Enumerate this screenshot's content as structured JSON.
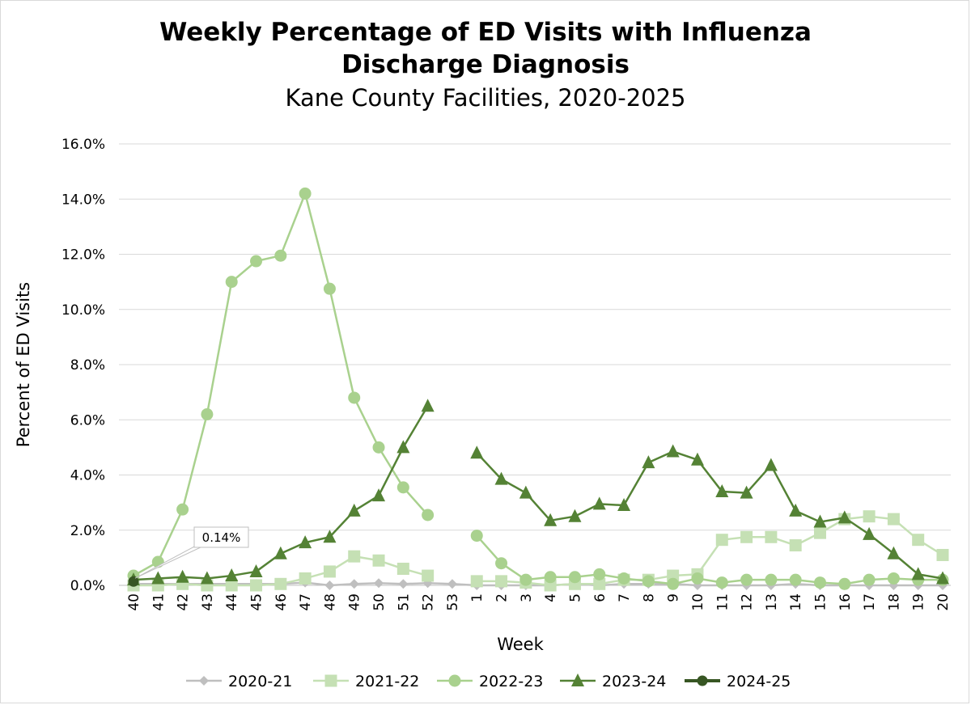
{
  "chart_data": {
    "type": "line",
    "title_line1": "Weekly Percentage of ED Visits with Influenza",
    "title_line2": "Discharge Diagnosis",
    "subtitle": "Kane County Facilities, 2020-2025",
    "xlabel": "Week",
    "ylabel": "Percent of ED Visits",
    "ylim": [
      0,
      16
    ],
    "yticks": [
      "0.0%",
      "2.0%",
      "4.0%",
      "6.0%",
      "8.0%",
      "10.0%",
      "12.0%",
      "14.0%",
      "16.0%"
    ],
    "categories": [
      "40",
      "41",
      "42",
      "43",
      "44",
      "45",
      "46",
      "47",
      "48",
      "49",
      "50",
      "51",
      "52",
      "53",
      "1",
      "2",
      "3",
      "4",
      "5",
      "6",
      "7",
      "8",
      "9",
      "10",
      "11",
      "12",
      "13",
      "14",
      "15",
      "16",
      "17",
      "18",
      "19",
      "20"
    ],
    "grid": "horizontal",
    "legend_position": "bottom",
    "series": [
      {
        "name": "2020-21",
        "color": "#bfbfbf",
        "marker": "diamond",
        "values": [
          0.05,
          0.05,
          0.05,
          0.05,
          0.05,
          0.05,
          0.05,
          0.1,
          0.0,
          0.05,
          0.08,
          0.05,
          0.08,
          0.05,
          0.0,
          0.0,
          0.0,
          0.0,
          0.05,
          0.0,
          0.05,
          0.05,
          0.05,
          0.0,
          0.0,
          0.0,
          0.0,
          0.05,
          0.0,
          0.0,
          0.0,
          0.0,
          0.0,
          0.0
        ]
      },
      {
        "name": "2021-22",
        "color": "#c5e0b4",
        "marker": "square",
        "values": [
          0.0,
          0.0,
          0.05,
          0.0,
          0.0,
          0.0,
          0.05,
          0.25,
          0.5,
          1.05,
          0.9,
          0.6,
          0.35,
          null,
          0.15,
          0.15,
          0.1,
          0.0,
          0.05,
          0.05,
          0.2,
          0.2,
          0.35,
          0.4,
          1.65,
          1.75,
          1.75,
          1.45,
          1.9,
          2.4,
          2.5,
          2.4,
          1.65,
          1.1
        ]
      },
      {
        "name": "2022-23",
        "color": "#a9d18e",
        "marker": "circle",
        "values": [
          0.35,
          0.85,
          2.75,
          6.2,
          11.0,
          11.75,
          11.95,
          14.2,
          10.75,
          6.8,
          5.0,
          3.55,
          2.55,
          null,
          1.8,
          0.8,
          0.2,
          0.3,
          0.3,
          0.4,
          0.25,
          0.15,
          0.05,
          0.25,
          0.1,
          0.2,
          0.2,
          0.2,
          0.1,
          0.05,
          0.2,
          0.25,
          0.2,
          0.2
        ]
      },
      {
        "name": "2023-24",
        "color": "#548235",
        "marker": "triangle",
        "values": [
          0.2,
          0.25,
          0.3,
          0.25,
          0.35,
          0.5,
          1.15,
          1.55,
          1.75,
          2.7,
          3.25,
          5.0,
          6.5,
          null,
          4.8,
          3.85,
          3.35,
          2.35,
          2.5,
          2.95,
          2.9,
          4.45,
          4.85,
          4.55,
          3.4,
          3.35,
          4.35,
          2.7,
          2.3,
          2.45,
          1.85,
          1.15,
          0.4,
          0.25
        ]
      },
      {
        "name": "2024-25",
        "color": "#375623",
        "marker": "circle",
        "values": [
          0.14,
          null,
          null,
          null,
          null,
          null,
          null,
          null,
          null,
          null,
          null,
          null,
          null,
          null,
          null,
          null,
          null,
          null,
          null,
          null,
          null,
          null,
          null,
          null,
          null,
          null,
          null,
          null,
          null,
          null,
          null,
          null,
          null,
          null
        ]
      }
    ],
    "annotation": {
      "text": "0.14%",
      "series": "2024-25",
      "category": "40"
    }
  }
}
